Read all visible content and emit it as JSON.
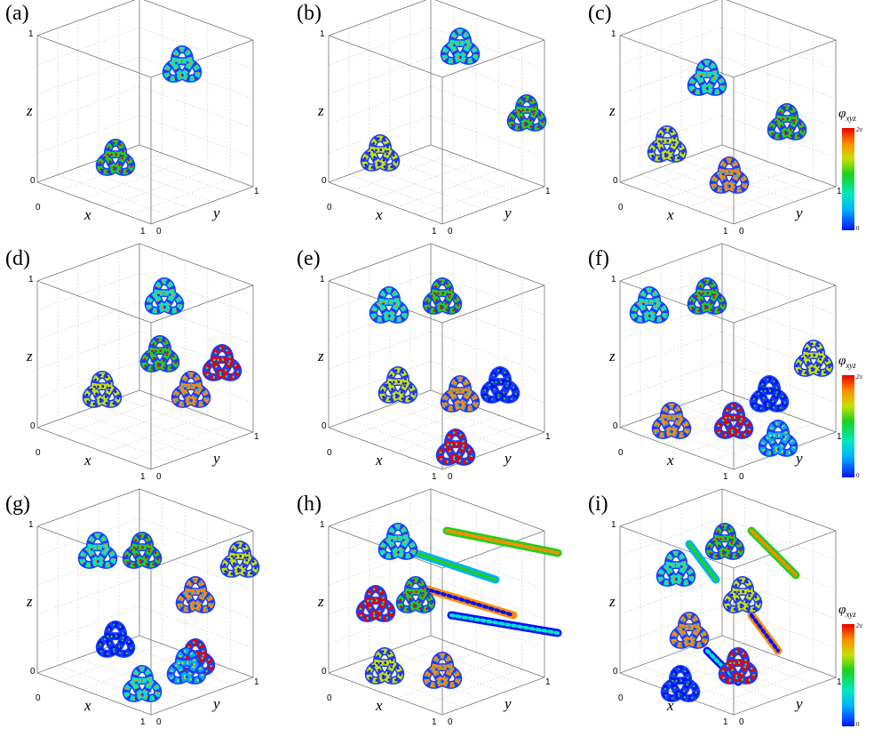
{
  "figure": {
    "panels": [
      {
        "label": "(a)",
        "x_axis": "x",
        "y_axis": "y",
        "z_axis": "z",
        "tick_zero": "0",
        "tick_one": "1",
        "knots": 2
      },
      {
        "label": "(b)",
        "x_axis": "x",
        "y_axis": "y",
        "z_axis": "z",
        "tick_zero": "0",
        "tick_one": "1",
        "knots": 3
      },
      {
        "label": "(c)",
        "x_axis": "x",
        "y_axis": "y",
        "z_axis": "z",
        "tick_zero": "0",
        "tick_one": "1",
        "knots": 4
      },
      {
        "label": "(d)",
        "x_axis": "x",
        "y_axis": "y",
        "z_axis": "z",
        "tick_zero": "0",
        "tick_one": "1",
        "knots": 5
      },
      {
        "label": "(e)",
        "x_axis": "x",
        "y_axis": "y",
        "z_axis": "z",
        "tick_zero": "0",
        "tick_one": "1",
        "knots": 6
      },
      {
        "label": "(f)",
        "x_axis": "x",
        "y_axis": "y",
        "z_axis": "z",
        "tick_zero": "0",
        "tick_one": "1",
        "knots": 7
      },
      {
        "label": "(g)",
        "x_axis": "x",
        "y_axis": "y",
        "z_axis": "z",
        "tick_zero": "0",
        "tick_one": "1",
        "knots": 8
      },
      {
        "label": "(h)",
        "x_axis": "x",
        "y_axis": "y",
        "z_axis": "z",
        "tick_zero": "0",
        "tick_one": "1",
        "knots": 5,
        "rods": 4
      },
      {
        "label": "(i)",
        "x_axis": "x",
        "y_axis": "y",
        "z_axis": "z",
        "tick_zero": "0",
        "tick_one": "1",
        "knots": 6,
        "rods": 4
      }
    ],
    "colorbar": {
      "symbol": "φ",
      "subscript": "xyz",
      "max_label": "2π",
      "min_label": "0",
      "colors": [
        "#0010ff",
        "#00b0ff",
        "#00e8c0",
        "#20d020",
        "#c8e000",
        "#ff8c00",
        "#e80000"
      ]
    }
  }
}
